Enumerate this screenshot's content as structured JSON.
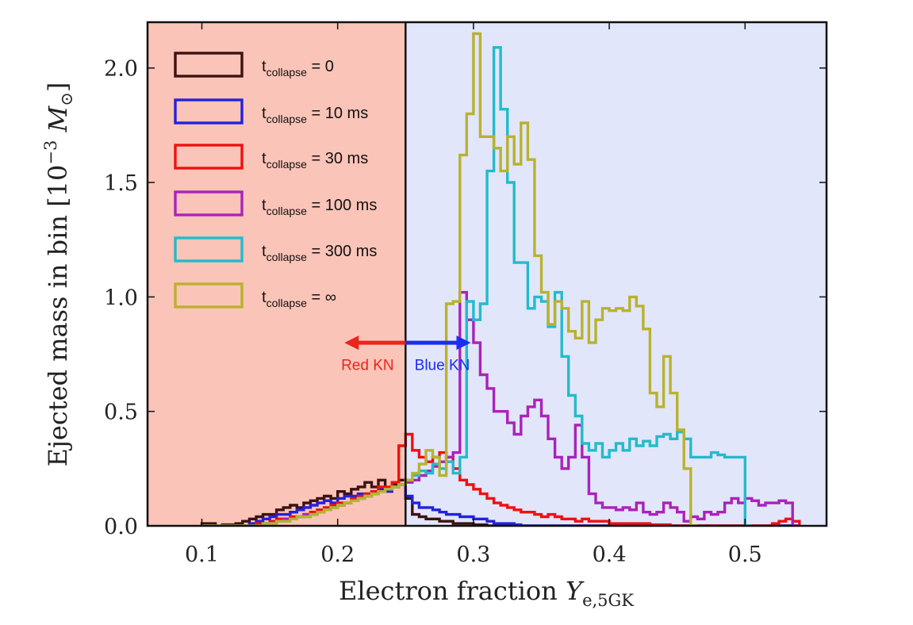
{
  "chart_data": {
    "type": "histogram",
    "xlabel": {
      "main": "Electron fraction ",
      "var": "Y",
      "sub": "e,5GK"
    },
    "ylabel": {
      "main": "Ejected mass in bin [10",
      "exp": "−3",
      "unit": " M",
      "sym": "⊙",
      "close": "]"
    },
    "xlim": [
      0.06,
      0.56
    ],
    "ylim": [
      0,
      2.2
    ],
    "xticks": [
      0.1,
      0.2,
      0.3,
      0.4,
      0.5
    ],
    "xtick_labels": [
      "0.1",
      "0.2",
      "0.3",
      "0.4",
      "0.5"
    ],
    "yticks": [
      0.0,
      0.5,
      1.0,
      1.5,
      2.0
    ],
    "ytick_labels": [
      "0.0",
      "0.5",
      "1.0",
      "1.5",
      "2.0"
    ],
    "regions": [
      {
        "name": "red-kn-region",
        "from": 0.06,
        "to": 0.25,
        "color": "#fbc4b8"
      },
      {
        "name": "blue-kn-region",
        "from": 0.25,
        "to": 0.56,
        "color": "#e2e6fa"
      }
    ],
    "divider_x": 0.25,
    "annotations": [
      {
        "name": "red-kn",
        "label": "Red KN",
        "color": "#e8261a",
        "arrow_from": 0.25,
        "arrow_to": 0.205,
        "y": 0.8,
        "text_x": 0.222,
        "text_y": 0.68
      },
      {
        "name": "blue-kn",
        "label": "Blue KN",
        "color": "#1c2cf0",
        "arrow_from": 0.25,
        "arrow_to": 0.298,
        "y": 0.8,
        "text_x": 0.277,
        "text_y": 0.68
      }
    ],
    "bin_edges": [
      0.1,
      0.105,
      0.11,
      0.115,
      0.12,
      0.125,
      0.13,
      0.135,
      0.14,
      0.145,
      0.15,
      0.155,
      0.16,
      0.165,
      0.17,
      0.175,
      0.18,
      0.185,
      0.19,
      0.195,
      0.2,
      0.205,
      0.21,
      0.215,
      0.22,
      0.225,
      0.23,
      0.235,
      0.24,
      0.245,
      0.25,
      0.255,
      0.26,
      0.265,
      0.27,
      0.275,
      0.28,
      0.285,
      0.29,
      0.295,
      0.3,
      0.305,
      0.31,
      0.315,
      0.32,
      0.325,
      0.33,
      0.335,
      0.34,
      0.345,
      0.35,
      0.355,
      0.36,
      0.365,
      0.37,
      0.375,
      0.38,
      0.385,
      0.39,
      0.395,
      0.4,
      0.405,
      0.41,
      0.415,
      0.42,
      0.425,
      0.43,
      0.435,
      0.44,
      0.445,
      0.45,
      0.455,
      0.46,
      0.465,
      0.47,
      0.475,
      0.48,
      0.485,
      0.49,
      0.495,
      0.5,
      0.505,
      0.51,
      0.515,
      0.52,
      0.525,
      0.53,
      0.535,
      0.54
    ],
    "series": [
      {
        "name": "t_collapse = 0",
        "color": "#3c1212",
        "values": [
          0.01,
          0.01,
          0,
          0.005,
          0.005,
          0.01,
          0.02,
          0.03,
          0.04,
          0.05,
          0.05,
          0.07,
          0.08,
          0.09,
          0.08,
          0.1,
          0.11,
          0.12,
          0.13,
          0.12,
          0.15,
          0.14,
          0.16,
          0.17,
          0.19,
          0.17,
          0.2,
          0.16,
          0.18,
          0.2,
          0.12,
          0.05,
          0.04,
          0.03,
          0.03,
          0.02,
          0.02,
          0.01,
          0.01,
          0.01,
          0.005,
          0.005,
          0,
          0,
          0,
          0,
          0,
          0,
          0,
          0,
          0,
          0,
          0,
          0,
          0,
          0,
          0,
          0,
          0,
          0,
          0,
          0,
          0,
          0,
          0,
          0,
          0,
          0,
          0,
          0,
          0,
          0,
          0,
          0,
          0,
          0,
          0,
          0,
          0,
          0,
          0,
          0,
          0,
          0,
          0,
          0,
          0,
          0
        ]
      },
      {
        "name": "t_collapse = 10 ms",
        "color": "#2222dd",
        "values": [
          0,
          0,
          0,
          0,
          0,
          0,
          0,
          0.01,
          0.02,
          0.03,
          0.04,
          0.05,
          0.05,
          0.06,
          0.07,
          0.08,
          0.09,
          0.1,
          0.11,
          0.1,
          0.12,
          0.13,
          0.13,
          0.14,
          0.14,
          0.15,
          0.16,
          0.15,
          0.17,
          0.18,
          0.13,
          0.1,
          0.08,
          0.08,
          0.07,
          0.06,
          0.05,
          0.05,
          0.04,
          0.04,
          0.03,
          0.03,
          0.02,
          0.01,
          0.01,
          0.01,
          0.005,
          0,
          0,
          0,
          0,
          0,
          0,
          0,
          0,
          0,
          0,
          0,
          0,
          0,
          0,
          0,
          0,
          0,
          0,
          0,
          0,
          0,
          0,
          0,
          0,
          0,
          0,
          0,
          0,
          0,
          0,
          0,
          0,
          0,
          0,
          0,
          0,
          0,
          0,
          0,
          0,
          0
        ]
      },
      {
        "name": "t_collapse = 30 ms",
        "color": "#ee1111",
        "values": [
          0,
          0,
          0,
          0,
          0,
          0,
          0,
          0,
          0.01,
          0.01,
          0.02,
          0.03,
          0.03,
          0.04,
          0.04,
          0.05,
          0.06,
          0.07,
          0.08,
          0.09,
          0.1,
          0.1,
          0.12,
          0.13,
          0.14,
          0.15,
          0.17,
          0.17,
          0.19,
          0.35,
          0.4,
          0.33,
          0.3,
          0.28,
          0.3,
          0.32,
          0.3,
          0.25,
          0.2,
          0.18,
          0.16,
          0.14,
          0.12,
          0.1,
          0.09,
          0.08,
          0.07,
          0.06,
          0.06,
          0.05,
          0.04,
          0.05,
          0.04,
          0.03,
          0.03,
          0.02,
          0.03,
          0.02,
          0.02,
          0.02,
          0.01,
          0.01,
          0.01,
          0.01,
          0.01,
          0.01,
          0.005,
          0.005,
          0.005,
          0,
          0,
          0,
          0,
          0,
          0,
          0,
          0,
          0,
          0,
          0,
          0,
          0,
          0,
          0,
          0.01,
          0.02,
          0.03,
          0.02
        ]
      },
      {
        "name": "t_collapse = 100 ms",
        "color": "#aa22bb",
        "values": [
          0,
          0,
          0,
          0,
          0,
          0,
          0,
          0,
          0,
          0.01,
          0.01,
          0.02,
          0.03,
          0.03,
          0.04,
          0.05,
          0.05,
          0.06,
          0.07,
          0.08,
          0.09,
          0.1,
          0.11,
          0.12,
          0.13,
          0.14,
          0.15,
          0.16,
          0.17,
          0.18,
          0.19,
          0.2,
          0.22,
          0.24,
          0.26,
          0.28,
          0.3,
          0.32,
          1.02,
          0.9,
          0.8,
          0.66,
          0.6,
          0.5,
          0.5,
          0.45,
          0.4,
          0.48,
          0.52,
          0.55,
          0.48,
          0.38,
          0.3,
          0.25,
          0.3,
          0.44,
          0.3,
          0.14,
          0.1,
          0.08,
          0.08,
          0.07,
          0.08,
          0.07,
          0.1,
          0.06,
          0.05,
          0.06,
          0.1,
          0.08,
          0.06,
          0.02,
          0.04,
          0.03,
          0.06,
          0.05,
          0.06,
          0.1,
          0.12,
          0.1,
          0.12,
          0.11,
          0.09,
          0.1,
          0.1,
          0.11,
          0.1,
          0
        ]
      },
      {
        "name": "t_collapse = 300 ms",
        "color": "#22bbcc",
        "values": [
          0,
          0,
          0,
          0,
          0,
          0,
          0,
          0,
          0,
          0.01,
          0.01,
          0.02,
          0.02,
          0.03,
          0.04,
          0.04,
          0.05,
          0.06,
          0.07,
          0.08,
          0.09,
          0.1,
          0.11,
          0.12,
          0.13,
          0.14,
          0.15,
          0.16,
          0.17,
          0.18,
          0.2,
          0.22,
          0.24,
          0.23,
          0.27,
          0.25,
          0.28,
          0.23,
          0.3,
          0.98,
          0.9,
          0.97,
          1.55,
          2.09,
          1.82,
          1.5,
          1.15,
          1.15,
          0.95,
          1.0,
          0.98,
          0.87,
          1.02,
          0.74,
          0.57,
          0.48,
          0.36,
          0.33,
          0.36,
          0.3,
          0.33,
          0.36,
          0.33,
          0.38,
          0.35,
          0.37,
          0.35,
          0.39,
          0.4,
          0.38,
          0.41,
          0.38,
          0.3,
          0.3,
          0.3,
          0.32,
          0.31,
          0.3,
          0.3,
          0.3,
          0
        ]
      },
      {
        "name": "t_collapse = ∞",
        "color": "#b8b22e",
        "values": [
          0,
          0,
          0,
          0,
          0,
          0,
          0,
          0,
          0,
          0.01,
          0.01,
          0.02,
          0.02,
          0.03,
          0.04,
          0.04,
          0.05,
          0.06,
          0.07,
          0.08,
          0.09,
          0.1,
          0.11,
          0.12,
          0.13,
          0.14,
          0.15,
          0.16,
          0.17,
          0.18,
          0.2,
          0.23,
          0.27,
          0.33,
          0.3,
          0.22,
          0.97,
          0.98,
          1.62,
          1.8,
          2.15,
          1.7,
          1.7,
          1.65,
          1.55,
          1.7,
          1.58,
          1.76,
          1.6,
          1.18,
          1.02,
          0.88,
          0.98,
          0.95,
          0.85,
          0.82,
          0.98,
          0.8,
          0.9,
          0.95,
          0.94,
          0.95,
          0.94,
          1.0,
          0.96,
          0.86,
          0.58,
          0.52,
          0.74,
          0.58,
          0.42,
          0.25,
          0.0
        ]
      }
    ]
  },
  "legend": {
    "prefix": "t",
    "sub": "collapse",
    "items": [
      {
        "name": "legend-item-0",
        "suffix": " = 0",
        "color": "#3c1212"
      },
      {
        "name": "legend-item-10ms",
        "suffix": " = 10 ms",
        "color": "#2222dd"
      },
      {
        "name": "legend-item-30ms",
        "suffix": " = 30 ms",
        "color": "#ee1111"
      },
      {
        "name": "legend-item-100ms",
        "suffix": " = 100 ms",
        "color": "#aa22bb"
      },
      {
        "name": "legend-item-300ms",
        "suffix": " = 300 ms",
        "color": "#22bbcc"
      },
      {
        "name": "legend-item-inf",
        "suffix": " = ∞",
        "color": "#b8b22e"
      }
    ]
  }
}
